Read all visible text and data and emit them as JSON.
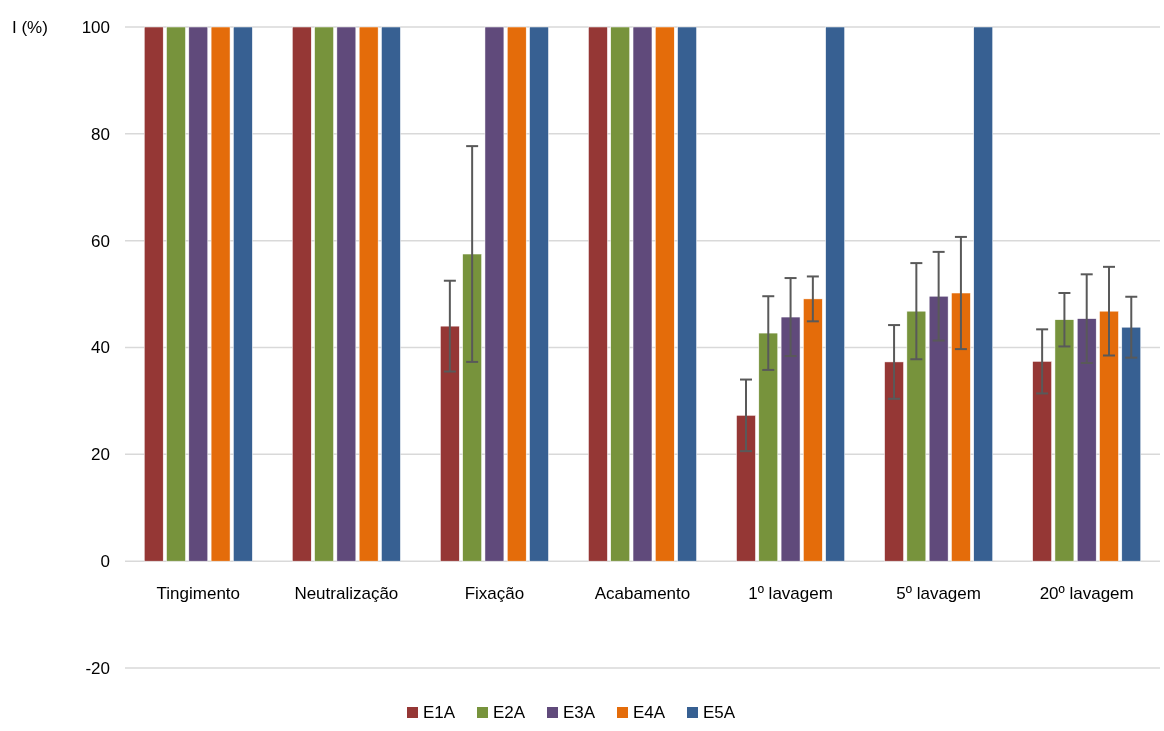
{
  "chart_data": {
    "type": "bar",
    "ylabel": "I (%)",
    "categories": [
      "Tingimento",
      "Neutralização",
      "Fixação",
      "Acabamento",
      "1º lavagem",
      "5º lavagem",
      "20º lavagem"
    ],
    "series": [
      {
        "name": "E1A",
        "color": "#953735",
        "values": [
          100,
          100,
          44.0,
          100,
          27.3,
          37.3,
          37.4
        ],
        "errors": [
          null,
          null,
          8.5,
          null,
          6.7,
          6.9,
          6.0
        ]
      },
      {
        "name": "E2A",
        "color": "#77933c",
        "values": [
          100,
          100,
          57.5,
          100,
          42.7,
          46.8,
          45.2
        ],
        "errors": [
          null,
          null,
          20.2,
          null,
          6.9,
          9.0,
          5.0
        ]
      },
      {
        "name": "E3A",
        "color": "#604a7b",
        "values": [
          100,
          100,
          100,
          100,
          45.7,
          49.6,
          45.4
        ],
        "errors": [
          null,
          null,
          null,
          null,
          7.3,
          8.3,
          8.3
        ]
      },
      {
        "name": "E4A",
        "color": "#e46c0a",
        "values": [
          100,
          100,
          100,
          100,
          49.1,
          50.2,
          46.8
        ],
        "errors": [
          null,
          null,
          null,
          null,
          4.2,
          10.5,
          8.3
        ]
      },
      {
        "name": "E5A",
        "color": "#376092",
        "values": [
          100,
          100,
          100,
          100,
          100,
          100,
          43.8
        ],
        "errors": [
          null,
          null,
          null,
          null,
          null,
          null,
          5.7
        ]
      }
    ],
    "ylim": [
      -20,
      100
    ],
    "yticks": [
      -20,
      0,
      20,
      40,
      60,
      80,
      100
    ],
    "grid": "y",
    "legend": "bottom"
  }
}
